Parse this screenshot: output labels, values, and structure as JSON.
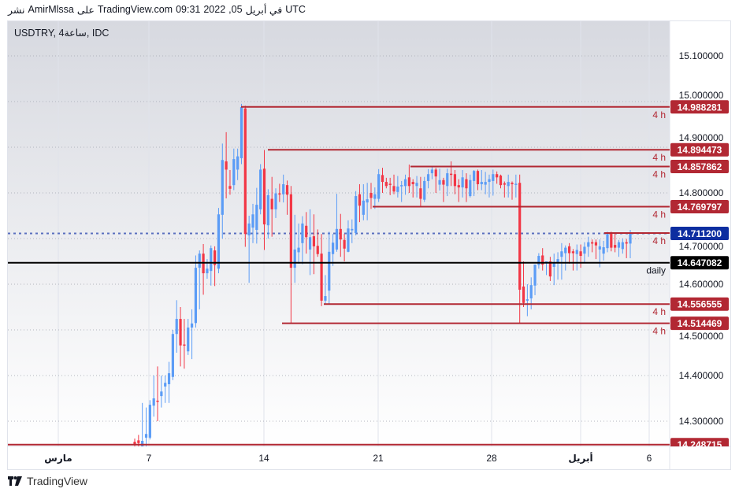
{
  "header": {
    "parts": [
      "نشر",
      "AmirMlssa",
      "على",
      "TradingView.com",
      "09:31",
      "2022",
      ",05",
      "في أبريل",
      "UTC"
    ]
  },
  "symbol_title": "USDTRY, 4ساعة, IDC",
  "footer": {
    "brand": "TradingView"
  },
  "colors": {
    "up": "#5b9cf6",
    "down": "#f23645",
    "level": "#b22833",
    "current_price": "#0d2ea0",
    "daily": "#000000"
  },
  "chart_data": {
    "type": "candlestick",
    "timeframe": "4h",
    "ylim": [
      14.25,
      15.18
    ],
    "y_ticks": [
      "15.100000",
      "15.000000",
      "14.900000",
      "14.800000",
      "14.700000",
      "14.600000",
      "14.500000",
      "14.400000",
      "14.300000"
    ],
    "y_tick_values": [
      15.1,
      15.0,
      14.9,
      14.8,
      14.7,
      14.6,
      14.5,
      14.4,
      14.3
    ],
    "x_ticks": [
      "مارس",
      "7",
      "14",
      "21",
      "28",
      "أبريل",
      "6"
    ],
    "grid": true,
    "current_price": {
      "value": 14.7112,
      "label": "14.711200"
    },
    "levels": [
      {
        "value": 14.988281,
        "label": "14.988281",
        "tag": "4 h"
      },
      {
        "value": 14.894473,
        "label": "14.894473",
        "tag": "4 h"
      },
      {
        "value": 14.857862,
        "label": "14.857862",
        "tag": "4 h"
      },
      {
        "value": 14.769797,
        "label": "14.769797",
        "tag": "4 h"
      },
      {
        "value": 14.7121,
        "label": "",
        "tag": "4 h"
      },
      {
        "value": 14.647082,
        "label": "14.647082",
        "tag": "daily"
      },
      {
        "value": 14.556555,
        "label": "14.556555",
        "tag": "4 h"
      },
      {
        "value": 14.514469,
        "label": "14.514469",
        "tag": "4 h"
      },
      {
        "value": 14.248715,
        "label": "14.248715",
        "tag": ""
      }
    ],
    "candles_ohlc": [
      [
        14.255,
        14.262,
        14.245,
        14.25
      ],
      [
        14.258,
        14.27,
        14.245,
        14.252
      ],
      [
        14.245,
        14.34,
        14.24,
        14.257
      ],
      [
        14.264,
        14.33,
        14.24,
        14.272
      ],
      [
        14.264,
        14.346,
        14.26,
        14.336
      ],
      [
        14.334,
        14.4,
        14.31,
        14.35
      ],
      [
        14.345,
        14.42,
        14.3,
        14.343
      ],
      [
        14.355,
        14.4,
        14.33,
        14.365
      ],
      [
        14.376,
        14.4,
        14.34,
        14.384
      ],
      [
        14.381,
        14.43,
        14.34,
        14.405
      ],
      [
        14.397,
        14.5,
        14.39,
        14.491
      ],
      [
        14.491,
        14.565,
        14.45,
        14.524
      ],
      [
        14.524,
        14.55,
        14.42,
        14.466
      ],
      [
        14.468,
        14.524,
        14.415,
        14.466
      ],
      [
        14.453,
        14.524,
        14.445,
        14.505
      ],
      [
        14.505,
        14.545,
        14.436,
        14.514
      ],
      [
        14.515,
        14.663,
        14.505,
        14.636
      ],
      [
        14.636,
        14.674,
        14.545,
        14.667
      ],
      [
        14.667,
        14.688,
        14.577,
        14.624
      ],
      [
        14.624,
        14.655,
        14.612,
        14.634
      ],
      [
        14.629,
        14.685,
        14.597,
        14.679
      ],
      [
        14.674,
        14.683,
        14.596,
        14.642
      ],
      [
        14.634,
        14.767,
        14.624,
        14.753
      ],
      [
        14.752,
        14.908,
        14.7,
        14.872
      ],
      [
        14.869,
        14.933,
        14.788,
        14.851
      ],
      [
        14.815,
        14.85,
        14.796,
        14.809
      ],
      [
        14.817,
        14.897,
        14.806,
        14.874
      ],
      [
        14.851,
        14.897,
        14.828,
        14.88
      ],
      [
        14.876,
        14.995,
        14.863,
        14.988
      ],
      [
        14.985,
        14.991,
        14.682,
        14.71
      ],
      [
        14.707,
        14.75,
        14.603,
        14.733
      ],
      [
        14.724,
        14.776,
        14.69,
        14.753
      ],
      [
        14.719,
        14.811,
        14.689,
        14.774
      ],
      [
        14.764,
        14.863,
        14.753,
        14.851
      ],
      [
        14.853,
        14.894,
        14.675,
        14.731
      ],
      [
        14.729,
        14.808,
        14.7,
        14.795
      ],
      [
        14.787,
        14.835,
        14.704,
        14.764
      ],
      [
        14.764,
        14.81,
        14.745,
        14.799
      ],
      [
        14.799,
        14.82,
        14.78,
        14.797
      ],
      [
        14.797,
        14.84,
        14.779,
        14.819
      ],
      [
        14.817,
        14.827,
        14.752,
        14.796
      ],
      [
        14.797,
        14.815,
        14.5145,
        14.636
      ],
      [
        14.636,
        14.752,
        14.603,
        14.676
      ],
      [
        14.67,
        14.733,
        14.645,
        14.68
      ],
      [
        14.69,
        14.749,
        14.644,
        14.733
      ],
      [
        14.728,
        14.758,
        14.667,
        14.703
      ],
      [
        14.676,
        14.764,
        14.62,
        14.703
      ],
      [
        14.705,
        14.753,
        14.622,
        14.683
      ],
      [
        14.684,
        14.72,
        14.66,
        14.666
      ],
      [
        14.667,
        14.71,
        14.552,
        14.564
      ],
      [
        14.564,
        14.62,
        14.556,
        14.574
      ],
      [
        14.586,
        14.715,
        14.556,
        14.671
      ],
      [
        14.666,
        14.71,
        14.64,
        14.691
      ],
      [
        14.676,
        14.798,
        14.671,
        14.721
      ],
      [
        14.721,
        14.754,
        14.66,
        14.698
      ],
      [
        14.697,
        14.71,
        14.65,
        14.678
      ],
      [
        14.671,
        14.74,
        14.67,
        14.722
      ],
      [
        14.718,
        14.742,
        14.69,
        14.721
      ],
      [
        14.712,
        14.804,
        14.707,
        14.793
      ],
      [
        14.797,
        14.819,
        14.736,
        14.772
      ],
      [
        14.752,
        14.819,
        14.74,
        14.783
      ],
      [
        14.779,
        14.822,
        14.74,
        14.786
      ],
      [
        14.8,
        14.822,
        14.765,
        14.789
      ],
      [
        14.787,
        14.812,
        14.765,
        14.797
      ],
      [
        14.787,
        14.852,
        14.78,
        14.841
      ],
      [
        14.839,
        14.855,
        14.8,
        14.824
      ],
      [
        14.824,
        14.833,
        14.81,
        14.815
      ],
      [
        14.82,
        14.833,
        14.795,
        14.819
      ],
      [
        14.815,
        14.84,
        14.797,
        14.803
      ],
      [
        14.802,
        14.837,
        14.79,
        14.814
      ],
      [
        14.815,
        14.826,
        14.78,
        14.817
      ],
      [
        14.815,
        14.84,
        14.796,
        14.83
      ],
      [
        14.834,
        14.862,
        14.8,
        14.815
      ],
      [
        14.824,
        14.83,
        14.79,
        14.819
      ],
      [
        14.815,
        14.837,
        14.79,
        14.822
      ],
      [
        14.81,
        14.835,
        14.77,
        14.787
      ],
      [
        14.785,
        14.835,
        14.78,
        14.826
      ],
      [
        14.826,
        14.852,
        14.81,
        14.841
      ],
      [
        14.843,
        14.857,
        14.83,
        14.851
      ],
      [
        14.851,
        14.855,
        14.8,
        14.836
      ],
      [
        14.818,
        14.853,
        14.805,
        14.828
      ],
      [
        14.828,
        14.833,
        14.78,
        14.818
      ],
      [
        14.815,
        14.853,
        14.793,
        14.843
      ],
      [
        14.842,
        14.869,
        14.815,
        14.841
      ],
      [
        14.841,
        14.85,
        14.797,
        14.815
      ],
      [
        14.817,
        14.83,
        14.78,
        14.812
      ],
      [
        14.812,
        14.85,
        14.79,
        14.834
      ],
      [
        14.83,
        14.843,
        14.78,
        14.81
      ],
      [
        14.793,
        14.84,
        14.79,
        14.828
      ],
      [
        14.826,
        14.85,
        14.793,
        14.848
      ],
      [
        14.848,
        14.851,
        14.806,
        14.819
      ],
      [
        14.819,
        14.85,
        14.806,
        14.824
      ],
      [
        14.818,
        14.846,
        14.797,
        14.824
      ],
      [
        14.824,
        14.84,
        14.79,
        14.83
      ],
      [
        14.826,
        14.851,
        14.794,
        14.841
      ],
      [
        14.841,
        14.847,
        14.82,
        14.834
      ],
      [
        14.838,
        14.84,
        14.81,
        14.817
      ],
      [
        14.821,
        14.825,
        14.79,
        14.818
      ],
      [
        14.815,
        14.84,
        14.79,
        14.824
      ],
      [
        14.822,
        14.825,
        14.785,
        14.819
      ],
      [
        14.819,
        14.84,
        14.79,
        14.82
      ],
      [
        14.822,
        14.84,
        14.514,
        14.588
      ],
      [
        14.595,
        14.65,
        14.55,
        14.559
      ],
      [
        14.564,
        14.6,
        14.53,
        14.567
      ],
      [
        14.569,
        14.615,
        14.545,
        14.598
      ],
      [
        14.597,
        14.643,
        14.576,
        14.643
      ],
      [
        14.642,
        14.668,
        14.634,
        14.662
      ],
      [
        14.663,
        14.679,
        14.63,
        14.643
      ],
      [
        14.646,
        14.65,
        14.62,
        14.65
      ],
      [
        14.65,
        14.66,
        14.607,
        14.617
      ],
      [
        14.638,
        14.667,
        14.598,
        14.647
      ],
      [
        14.647,
        14.67,
        14.61,
        14.655
      ],
      [
        14.66,
        14.69,
        14.61,
        14.672
      ],
      [
        14.668,
        14.685,
        14.63,
        14.68
      ],
      [
        14.683,
        14.69,
        14.645,
        14.668
      ],
      [
        14.672,
        14.677,
        14.63,
        14.668
      ],
      [
        14.666,
        14.687,
        14.63,
        14.675
      ],
      [
        14.672,
        14.687,
        14.636,
        14.662
      ],
      [
        14.667,
        14.692,
        14.648,
        14.682
      ],
      [
        14.682,
        14.704,
        14.66,
        14.692
      ],
      [
        14.692,
        14.698,
        14.67,
        14.689
      ],
      [
        14.692,
        14.698,
        14.655,
        14.685
      ],
      [
        14.676,
        14.698,
        14.637,
        14.683
      ],
      [
        14.667,
        14.695,
        14.652,
        14.681
      ],
      [
        14.679,
        14.715,
        14.67,
        14.71
      ],
      [
        14.712,
        14.715,
        14.672,
        14.68
      ],
      [
        14.686,
        14.712,
        14.67,
        14.68
      ],
      [
        14.68,
        14.697,
        14.66,
        14.692
      ],
      [
        14.677,
        14.7,
        14.667,
        14.692
      ],
      [
        14.692,
        14.699,
        14.657,
        14.689
      ],
      [
        14.689,
        14.719,
        14.657,
        14.711
      ]
    ]
  }
}
